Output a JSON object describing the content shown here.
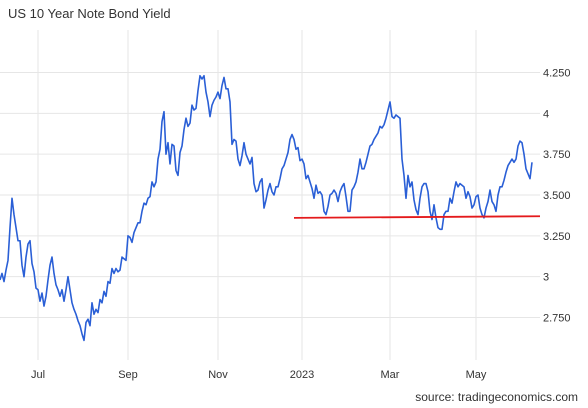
{
  "chart_data": {
    "type": "line",
    "title": "US 10 Year Note Bond Yield",
    "source": "source: tradingeconomics.com",
    "xlabel": "",
    "ylabel": "",
    "ylim": [
      2.49,
      4.51
    ],
    "xlim": [
      0,
      270
    ],
    "grid": true,
    "legend": "none",
    "x_ticks": [
      {
        "label": "Jul",
        "x": 19
      },
      {
        "label": "Sep",
        "x": 64
      },
      {
        "label": "Nov",
        "x": 109
      },
      {
        "label": "2023",
        "x": 151
      },
      {
        "label": "Mar",
        "x": 195
      },
      {
        "label": "May",
        "x": 238
      }
    ],
    "y_ticks": [
      {
        "label": "2.750",
        "value": 2.75
      },
      {
        "label": "3",
        "value": 3.0
      },
      {
        "label": "3.250",
        "value": 3.25
      },
      {
        "label": "3.500",
        "value": 3.5
      },
      {
        "label": "3.750",
        "value": 3.75
      },
      {
        "label": "4",
        "value": 4.0
      },
      {
        "label": "4.250",
        "value": 4.25
      }
    ],
    "series": [
      {
        "color": "#2a5fd6",
        "points": [
          [
            0,
            2.98
          ],
          [
            1,
            3.02
          ],
          [
            2,
            2.97
          ],
          [
            3,
            3.04
          ],
          [
            4,
            3.1
          ],
          [
            5,
            3.3
          ],
          [
            6,
            3.48
          ],
          [
            7,
            3.38
          ],
          [
            8,
            3.3
          ],
          [
            9,
            3.22
          ],
          [
            10,
            3.22
          ],
          [
            11,
            3.07
          ],
          [
            12,
            3.0
          ],
          [
            13,
            3.12
          ],
          [
            14,
            3.2
          ],
          [
            15,
            3.22
          ],
          [
            16,
            3.08
          ],
          [
            17,
            3.03
          ],
          [
            18,
            2.93
          ],
          [
            19,
            2.92
          ],
          [
            20,
            2.85
          ],
          [
            21,
            2.9
          ],
          [
            22,
            2.82
          ],
          [
            23,
            2.88
          ],
          [
            24,
            2.98
          ],
          [
            25,
            3.07
          ],
          [
            26,
            3.12
          ],
          [
            27,
            3.02
          ],
          [
            28,
            2.95
          ],
          [
            29,
            2.92
          ],
          [
            30,
            2.88
          ],
          [
            31,
            2.92
          ],
          [
            32,
            2.85
          ],
          [
            33,
            2.92
          ],
          [
            34,
            3.0
          ],
          [
            35,
            2.92
          ],
          [
            36,
            2.84
          ],
          [
            37,
            2.8
          ],
          [
            38,
            2.77
          ],
          [
            39,
            2.73
          ],
          [
            40,
            2.7
          ],
          [
            41,
            2.65
          ],
          [
            42,
            2.61
          ],
          [
            43,
            2.72
          ],
          [
            44,
            2.74
          ],
          [
            45,
            2.7
          ],
          [
            46,
            2.84
          ],
          [
            47,
            2.77
          ],
          [
            48,
            2.8
          ],
          [
            49,
            2.78
          ],
          [
            50,
            2.86
          ],
          [
            51,
            2.84
          ],
          [
            52,
            2.91
          ],
          [
            53,
            2.88
          ],
          [
            54,
            2.97
          ],
          [
            55,
            2.96
          ],
          [
            56,
            3.05
          ],
          [
            57,
            3.02
          ],
          [
            58,
            3.05
          ],
          [
            59,
            3.03
          ],
          [
            60,
            3.04
          ],
          [
            61,
            3.12
          ],
          [
            62,
            3.11
          ],
          [
            63,
            3.1
          ],
          [
            64,
            3.25
          ],
          [
            65,
            3.24
          ],
          [
            66,
            3.21
          ],
          [
            67,
            3.27
          ],
          [
            68,
            3.3
          ],
          [
            69,
            3.33
          ],
          [
            70,
            3.33
          ],
          [
            71,
            3.4
          ],
          [
            72,
            3.45
          ],
          [
            73,
            3.44
          ],
          [
            74,
            3.48
          ],
          [
            75,
            3.49
          ],
          [
            76,
            3.58
          ],
          [
            77,
            3.55
          ],
          [
            78,
            3.58
          ],
          [
            79,
            3.72
          ],
          [
            80,
            3.78
          ],
          [
            81,
            3.95
          ],
          [
            82,
            4.01
          ],
          [
            83,
            3.75
          ],
          [
            84,
            3.82
          ],
          [
            85,
            3.69
          ],
          [
            86,
            3.81
          ],
          [
            87,
            3.8
          ],
          [
            88,
            3.65
          ],
          [
            89,
            3.62
          ],
          [
            90,
            3.76
          ],
          [
            91,
            3.8
          ],
          [
            92,
            3.9
          ],
          [
            93,
            3.97
          ],
          [
            94,
            3.92
          ],
          [
            95,
            3.94
          ],
          [
            96,
            4.05
          ],
          [
            97,
            4.02
          ],
          [
            98,
            4.03
          ],
          [
            99,
            4.14
          ],
          [
            100,
            4.23
          ],
          [
            101,
            4.21
          ],
          [
            102,
            4.23
          ],
          [
            103,
            4.13
          ],
          [
            104,
            4.07
          ],
          [
            105,
            3.98
          ],
          [
            106,
            4.05
          ],
          [
            107,
            4.08
          ],
          [
            108,
            4.1
          ],
          [
            109,
            4.13
          ],
          [
            110,
            4.09
          ],
          [
            111,
            4.17
          ],
          [
            112,
            4.22
          ],
          [
            113,
            4.15
          ],
          [
            114,
            4.15
          ],
          [
            115,
            4.07
          ],
          [
            116,
            3.81
          ],
          [
            117,
            3.84
          ],
          [
            118,
            3.83
          ],
          [
            119,
            3.72
          ],
          [
            120,
            3.68
          ],
          [
            121,
            3.74
          ],
          [
            122,
            3.82
          ],
          [
            123,
            3.75
          ],
          [
            124,
            3.72
          ],
          [
            125,
            3.69
          ],
          [
            126,
            3.73
          ],
          [
            127,
            3.57
          ],
          [
            128,
            3.52
          ],
          [
            129,
            3.53
          ],
          [
            130,
            3.58
          ],
          [
            131,
            3.6
          ],
          [
            132,
            3.42
          ],
          [
            133,
            3.47
          ],
          [
            134,
            3.53
          ],
          [
            135,
            3.57
          ],
          [
            136,
            3.52
          ],
          [
            137,
            3.5
          ],
          [
            138,
            3.55
          ],
          [
            139,
            3.55
          ],
          [
            140,
            3.6
          ],
          [
            141,
            3.66
          ],
          [
            142,
            3.68
          ],
          [
            143,
            3.72
          ],
          [
            144,
            3.76
          ],
          [
            145,
            3.84
          ],
          [
            146,
            3.87
          ],
          [
            147,
            3.84
          ],
          [
            148,
            3.78
          ],
          [
            149,
            3.79
          ],
          [
            150,
            3.71
          ],
          [
            151,
            3.72
          ],
          [
            152,
            3.69
          ],
          [
            153,
            3.6
          ],
          [
            154,
            3.62
          ],
          [
            155,
            3.58
          ],
          [
            156,
            3.54
          ],
          [
            157,
            3.48
          ],
          [
            158,
            3.56
          ],
          [
            159,
            3.51
          ],
          [
            160,
            3.52
          ],
          [
            161,
            3.5
          ],
          [
            162,
            3.4
          ],
          [
            163,
            3.38
          ],
          [
            164,
            3.43
          ],
          [
            165,
            3.5
          ],
          [
            166,
            3.51
          ],
          [
            167,
            3.53
          ],
          [
            168,
            3.51
          ],
          [
            169,
            3.46
          ],
          [
            170,
            3.52
          ],
          [
            171,
            3.55
          ],
          [
            172,
            3.57
          ],
          [
            173,
            3.49
          ],
          [
            174,
            3.4
          ],
          [
            175,
            3.4
          ],
          [
            176,
            3.53
          ],
          [
            177,
            3.55
          ],
          [
            178,
            3.58
          ],
          [
            179,
            3.64
          ],
          [
            180,
            3.72
          ],
          [
            181,
            3.66
          ],
          [
            182,
            3.66
          ],
          [
            183,
            3.7
          ],
          [
            184,
            3.75
          ],
          [
            185,
            3.8
          ],
          [
            186,
            3.81
          ],
          [
            187,
            3.84
          ],
          [
            188,
            3.86
          ],
          [
            189,
            3.88
          ],
          [
            190,
            3.92
          ],
          [
            191,
            3.91
          ],
          [
            192,
            3.93
          ],
          [
            193,
            3.97
          ],
          [
            194,
            4.02
          ],
          [
            195,
            4.07
          ],
          [
            196,
            3.98
          ],
          [
            197,
            3.97
          ],
          [
            198,
            3.99
          ],
          [
            199,
            3.98
          ],
          [
            200,
            3.97
          ],
          [
            201,
            3.72
          ],
          [
            202,
            3.62
          ],
          [
            203,
            3.48
          ],
          [
            204,
            3.62
          ],
          [
            205,
            3.55
          ],
          [
            206,
            3.58
          ],
          [
            207,
            3.47
          ],
          [
            208,
            3.41
          ],
          [
            209,
            3.38
          ],
          [
            210,
            3.48
          ],
          [
            211,
            3.55
          ],
          [
            212,
            3.57
          ],
          [
            213,
            3.57
          ],
          [
            214,
            3.52
          ],
          [
            215,
            3.4
          ],
          [
            216,
            3.35
          ],
          [
            217,
            3.44
          ],
          [
            218,
            3.36
          ],
          [
            219,
            3.3
          ],
          [
            220,
            3.29
          ],
          [
            221,
            3.29
          ],
          [
            222,
            3.38
          ],
          [
            223,
            3.4
          ],
          [
            224,
            3.4
          ],
          [
            225,
            3.48
          ],
          [
            226,
            3.45
          ],
          [
            227,
            3.52
          ],
          [
            228,
            3.58
          ],
          [
            229,
            3.55
          ],
          [
            230,
            3.57
          ],
          [
            231,
            3.56
          ],
          [
            232,
            3.55
          ],
          [
            233,
            3.48
          ],
          [
            234,
            3.52
          ],
          [
            235,
            3.49
          ],
          [
            236,
            3.42
          ],
          [
            237,
            3.44
          ],
          [
            238,
            3.49
          ],
          [
            239,
            3.5
          ],
          [
            240,
            3.42
          ],
          [
            241,
            3.38
          ],
          [
            242,
            3.36
          ],
          [
            243,
            3.42
          ],
          [
            244,
            3.46
          ],
          [
            245,
            3.53
          ],
          [
            246,
            3.46
          ],
          [
            247,
            3.44
          ],
          [
            248,
            3.4
          ],
          [
            249,
            3.5
          ],
          [
            250,
            3.55
          ],
          [
            251,
            3.55
          ],
          [
            252,
            3.59
          ],
          [
            253,
            3.64
          ],
          [
            254,
            3.68
          ],
          [
            255,
            3.7
          ],
          [
            256,
            3.72
          ],
          [
            257,
            3.7
          ],
          [
            258,
            3.72
          ],
          [
            259,
            3.8
          ],
          [
            260,
            3.83
          ],
          [
            261,
            3.82
          ],
          [
            262,
            3.75
          ],
          [
            263,
            3.66
          ],
          [
            264,
            3.63
          ],
          [
            265,
            3.6
          ],
          [
            266,
            3.7
          ]
        ]
      },
      {
        "color": "#e41a1c",
        "points": [
          [
            147,
            3.36
          ],
          [
            270,
            3.37
          ]
        ]
      }
    ]
  }
}
